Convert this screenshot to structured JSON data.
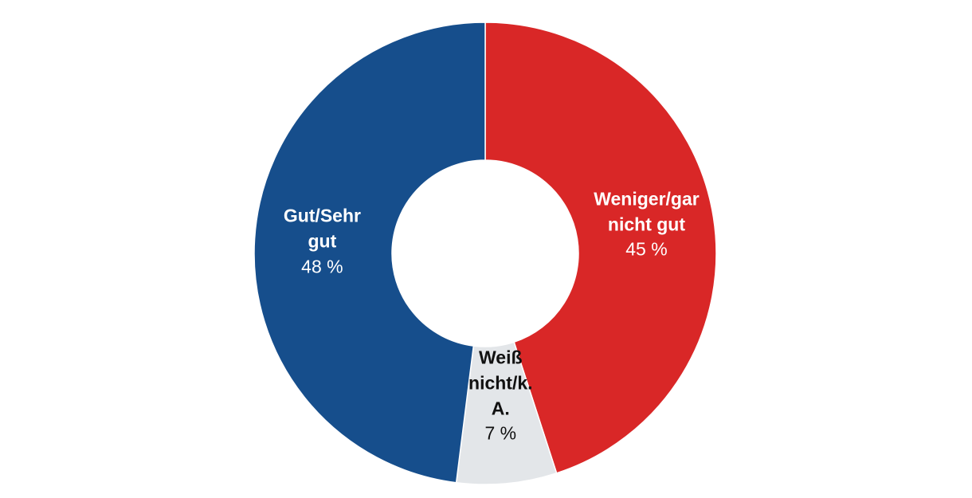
{
  "chart_data": {
    "type": "pie",
    "donut": true,
    "slices": [
      {
        "label": "Weniger/gar nicht gut",
        "label_lines": [
          "Weniger/gar",
          "nicht gut"
        ],
        "value": 45,
        "value_label": "45 %",
        "color": "#d92727",
        "text_color": "#ffffff"
      },
      {
        "label": "Weiß nicht/k. A.",
        "label_lines": [
          "Weiß",
          "nicht/k.",
          "A."
        ],
        "value": 7,
        "value_label": "7 %",
        "color": "#e3e6e9",
        "text_color": "#111111"
      },
      {
        "label": "Gut/Sehr gut",
        "label_lines": [
          "Gut/Sehr",
          "gut"
        ],
        "value": 48,
        "value_label": "48 %",
        "color": "#164e8c",
        "text_color": "#ffffff"
      }
    ],
    "start_angle_deg": 0,
    "direction": "clockwise"
  }
}
